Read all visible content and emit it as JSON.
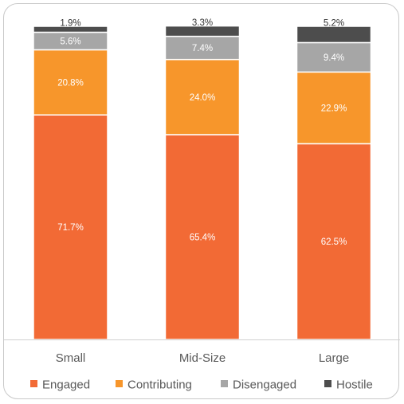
{
  "chart_data": {
    "type": "bar",
    "stacked": true,
    "categories": [
      "Small",
      "Mid-Size",
      "Large"
    ],
    "series": [
      {
        "name": "Engaged",
        "color": "#f26a35",
        "values": [
          71.7,
          65.4,
          62.5
        ],
        "labels": [
          "71.7%",
          "65.4%",
          "62.5%"
        ]
      },
      {
        "name": "Contributing",
        "color": "#f7962b",
        "values": [
          20.8,
          24.0,
          22.9
        ],
        "labels": [
          "20.8%",
          "24.0%",
          "22.9%"
        ]
      },
      {
        "name": "Disengaged",
        "color": "#a6a6a6",
        "values": [
          5.6,
          7.4,
          9.4
        ],
        "labels": [
          "5.6%",
          "7.4%",
          "9.4%"
        ]
      },
      {
        "name": "Hostile",
        "color": "#4d4d4d",
        "values": [
          1.9,
          3.3,
          5.2
        ],
        "labels": [
          "1.9%",
          "3.3%",
          "5.2%"
        ]
      }
    ],
    "ylim": [
      0,
      100
    ],
    "grid": false,
    "legend_position": "bottom"
  }
}
